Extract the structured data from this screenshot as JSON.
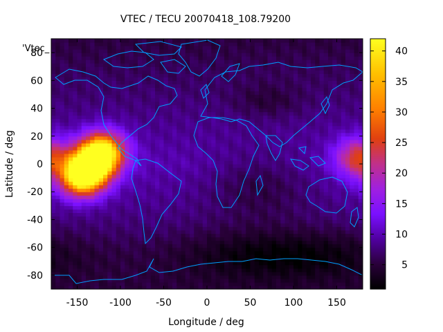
{
  "chart_data": {
    "type": "heatmap",
    "title": "VTEC / TECU 20070418_108.79200",
    "xlabel": "Longitude / deg",
    "ylabel": "Latitude / deg",
    "xlim": [
      -180,
      180
    ],
    "ylim": [
      -90,
      90
    ],
    "x_ticks": [
      -150,
      -100,
      -50,
      0,
      50,
      100,
      150
    ],
    "y_ticks": [
      -80,
      -60,
      -40,
      -20,
      0,
      20,
      40,
      60,
      80
    ],
    "legend_key": "'Vtec_",
    "colorbar": {
      "range": [
        1,
        42
      ],
      "ticks": [
        5,
        10,
        15,
        20,
        25,
        30,
        35,
        40
      ],
      "palette": [
        "#000000",
        "#2a003a",
        "#5000a0",
        "#7a10ff",
        "#a020e0",
        "#c0308a",
        "#e04010",
        "#ff8000",
        "#ffc000",
        "#ffff20"
      ]
    },
    "grid": false,
    "peaks": [
      {
        "lon": -132,
        "lat": 0,
        "vtec": 36
      },
      {
        "lon": -145,
        "lat": -10,
        "vtec": 40
      },
      {
        "lon": -120,
        "lat": 10,
        "vtec": 38
      },
      {
        "lon": 175,
        "lat": 5,
        "vtec": 27
      }
    ],
    "coastline_color": "#00a0ff"
  }
}
